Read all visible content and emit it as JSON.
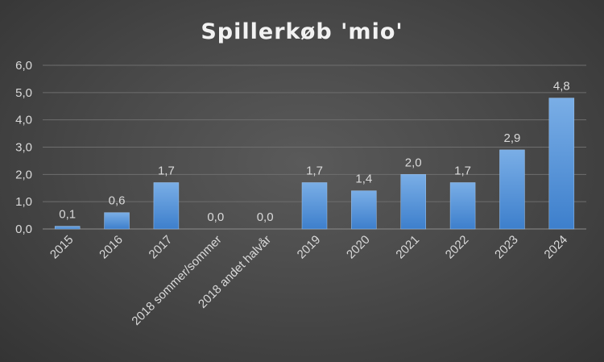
{
  "chart_data": {
    "type": "bar",
    "title": "Spillerkøb 'mio'",
    "categories": [
      "2015",
      "2016",
      "2017",
      "2018 sommer/sommer",
      "2018 andet halvår",
      "2019",
      "2020",
      "2021",
      "2022",
      "2023",
      "2024"
    ],
    "values": [
      0.1,
      0.6,
      1.7,
      0.0,
      0.0,
      1.7,
      1.4,
      2.0,
      1.7,
      2.9,
      4.8
    ],
    "data_labels": [
      "0,1",
      "0,6",
      "1,7",
      "0,0",
      "0,0",
      "1,7",
      "1,4",
      "2,0",
      "1,7",
      "2,9",
      "4,8"
    ],
    "y_ticks": [
      "0,0",
      "1,0",
      "2,0",
      "3,0",
      "4,0",
      "5,0",
      "6,0"
    ],
    "ylim": [
      0,
      6
    ],
    "grid": true,
    "legend": "none",
    "colors": {
      "bar_top": "#7aaee6",
      "bar_bottom": "#3d7fcc",
      "background": "#4a4a4a"
    }
  }
}
